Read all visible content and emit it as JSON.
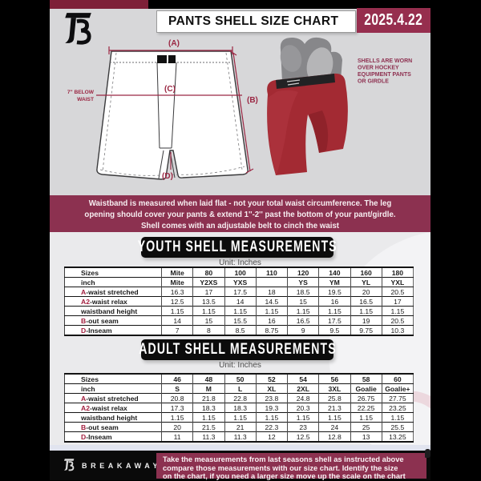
{
  "header": {
    "title": "PANTS SHELL SIZE CHART",
    "date": "2025.4.22"
  },
  "diagram": {
    "label_a": "(A)",
    "label_b": "(B)",
    "label_c": "(C)",
    "label_d": "(D)",
    "waist_note_line1": "7'' BELOW",
    "waist_note_line2": "WAIST",
    "caption_lines": [
      "SHELLS ARE WORN",
      "OVER HOCKEY",
      "EQUIPMENT PANTS",
      "OR GIRDLE"
    ]
  },
  "notice_lines": [
    "Waistband is measured when laid flat - not your total waist circumference. The leg",
    "opening should cover your pants & extend 1''-2'' past the bottom of your pant/girdle.",
    "Shell comes with an adjustable belt to cinch the waist"
  ],
  "youth": {
    "heading": "YOUTH SHELL MEASUREMENTS",
    "unit": "Unit: Inches",
    "table": {
      "rows": [
        {
          "prefix": "",
          "label": "Sizes",
          "header": true,
          "values": [
            "Mite",
            "80",
            "100",
            "110",
            "120",
            "140",
            "160",
            "180"
          ]
        },
        {
          "prefix": "",
          "label": "inch",
          "header": true,
          "values": [
            "Mite",
            "Y2XS",
            "YXS",
            "",
            "YS",
            "YM",
            "YL",
            "YXL"
          ]
        },
        {
          "prefix": "A",
          "label": "-waist stretched",
          "values": [
            "16.3",
            "17",
            "17.5",
            "18",
            "18.5",
            "19.5",
            "20",
            "20.5"
          ]
        },
        {
          "prefix": "A2",
          "label": "-waist relax",
          "values": [
            "12.5",
            "13.5",
            "14",
            "14.5",
            "15",
            "16",
            "16.5",
            "17"
          ]
        },
        {
          "prefix": "",
          "label": "waistband height",
          "values": [
            "1.15",
            "1.15",
            "1.15",
            "1.15",
            "1.15",
            "1.15",
            "1.15",
            "1.15"
          ]
        },
        {
          "prefix": "B",
          "label": "-out seam",
          "values": [
            "14",
            "15",
            "15.5",
            "16",
            "16.5",
            "17.5",
            "19",
            "20.5"
          ]
        },
        {
          "prefix": "D",
          "label": "-Inseam",
          "values": [
            "7",
            "8",
            "8.5",
            "8.75",
            "9",
            "9.5",
            "9.75",
            "10.3"
          ]
        }
      ]
    }
  },
  "adult": {
    "heading": "ADULT SHELL MEASUREMENTS",
    "unit": "Unit: Inches",
    "table": {
      "rows": [
        {
          "prefix": "",
          "label": "Sizes",
          "header": true,
          "values": [
            "46",
            "48",
            "50",
            "52",
            "54",
            "56",
            "58",
            "60"
          ]
        },
        {
          "prefix": "",
          "label": "inch",
          "header": true,
          "values": [
            "S",
            "M",
            "L",
            "XL",
            "2XL",
            "3XL",
            "Goalie",
            "Goalie+"
          ]
        },
        {
          "prefix": "A",
          "label": "-waist stretched",
          "values": [
            "20.8",
            "21.8",
            "22.8",
            "23.8",
            "24.8",
            "25.8",
            "26.75",
            "27.75"
          ]
        },
        {
          "prefix": "A2",
          "label": "-waist relax",
          "values": [
            "17.3",
            "18.3",
            "18.3",
            "19.3",
            "20.3",
            "21.3",
            "22.25",
            "23.25"
          ]
        },
        {
          "prefix": "",
          "label": "waistband height",
          "values": [
            "1.15",
            "1.15",
            "1.15",
            "1.15",
            "1.15",
            "1.15",
            "1.15",
            "1.15"
          ]
        },
        {
          "prefix": "B",
          "label": "-out seam",
          "values": [
            "20",
            "21.5",
            "21",
            "22.3",
            "23",
            "24",
            "25",
            "25.5"
          ]
        },
        {
          "prefix": "D",
          "label": "-Inseam",
          "values": [
            "11",
            "11.3",
            "11.3",
            "12",
            "12.5",
            "12.8",
            "13",
            "13.25"
          ]
        }
      ]
    }
  },
  "footer": {
    "brand": "BREAKAWAY",
    "note_lines": [
      "Take the measurements from last seasons shell as instructed above",
      "compare those measurements  with our size chart. Identify the size",
      "on the chart, if you need a larger size move up the scale on the chart"
    ]
  },
  "colors": {
    "maroon_band": "#8c3150",
    "maroon_dark": "#7e2038",
    "date_box": "#962e4e",
    "annotation_red": "#9b2743",
    "table_prefix_red": "#a31f3f",
    "page_gray": "#d7d7d9",
    "section_gray": "#eaeaec",
    "shell_red": "#a32a33"
  }
}
